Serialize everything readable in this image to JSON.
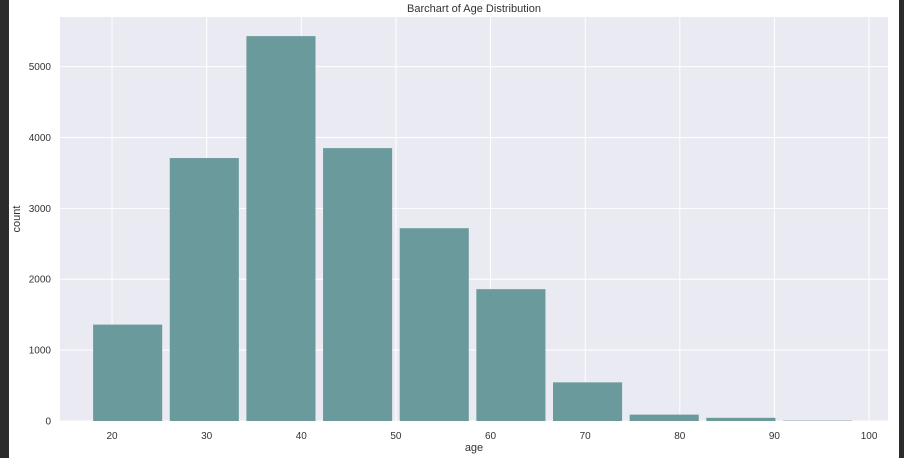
{
  "chart_data": {
    "type": "bar",
    "title": "Barchart of Age Distribution",
    "xlabel": "age",
    "ylabel": "count",
    "bar_color": "#6a9a9c",
    "plot_background": "#eaeaf2",
    "grid": true,
    "xlim": [
      14.5,
      102
    ],
    "ylim": [
      0,
      5700
    ],
    "x_ticks": [
      20,
      30,
      40,
      50,
      60,
      70,
      80,
      90,
      100
    ],
    "y_ticks": [
      0,
      1000,
      2000,
      3000,
      4000,
      5000
    ],
    "bin_width": 8.1,
    "bars": [
      {
        "x_start": 18.0,
        "x_end": 25.3,
        "value": 1360
      },
      {
        "x_start": 26.1,
        "x_end": 33.4,
        "value": 3710
      },
      {
        "x_start": 34.2,
        "x_end": 41.5,
        "value": 5430
      },
      {
        "x_start": 42.3,
        "x_end": 49.6,
        "value": 3850
      },
      {
        "x_start": 50.4,
        "x_end": 57.7,
        "value": 2720
      },
      {
        "x_start": 58.5,
        "x_end": 65.8,
        "value": 1860
      },
      {
        "x_start": 66.6,
        "x_end": 73.9,
        "value": 545
      },
      {
        "x_start": 74.7,
        "x_end": 82.0,
        "value": 90
      },
      {
        "x_start": 82.8,
        "x_end": 90.1,
        "value": 45
      },
      {
        "x_start": 90.9,
        "x_end": 98.2,
        "value": 5
      }
    ]
  }
}
